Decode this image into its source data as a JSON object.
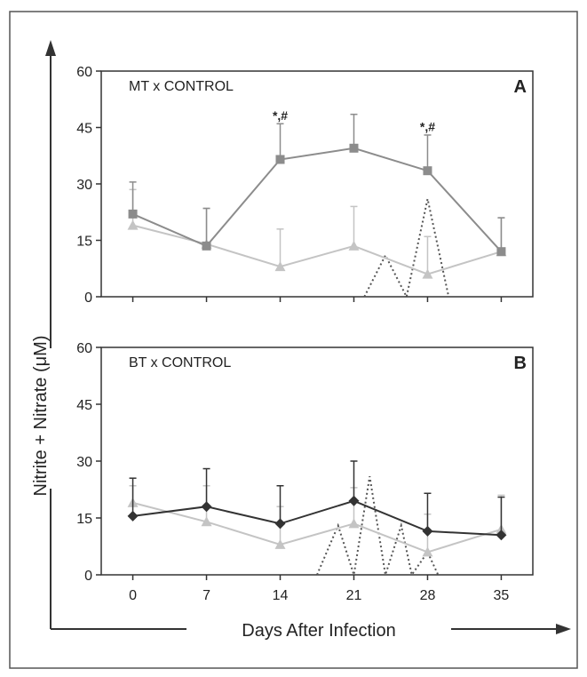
{
  "colors": {
    "frame": "#555555",
    "axis": "#333333",
    "mt": "#8c8c8c",
    "control": "#c4c4c4",
    "bt": "#333333",
    "dotted": "#555555"
  },
  "axes": {
    "xlabel": "Days After Infection",
    "ylabel": "Nitrite + Nitrate (μM)"
  },
  "chart_data": [
    {
      "type": "line",
      "title": "MT x CONTROL",
      "panel_letter": "A",
      "x": [
        0,
        7,
        14,
        21,
        28,
        35
      ],
      "xlim": [
        -3,
        38
      ],
      "ylim": [
        0,
        60
      ],
      "yticks": [
        "0",
        "15",
        "30",
        "45",
        "60"
      ],
      "series": [
        {
          "key": "MT",
          "marker": "square",
          "color": "#8c8c8c",
          "values": [
            22,
            13.5,
            36.5,
            39.5,
            33.5,
            12
          ],
          "error_upper": [
            30.5,
            23.5,
            46,
            48.5,
            43,
            21
          ]
        },
        {
          "key": "CONTROL",
          "marker": "triangle",
          "color": "#c4c4c4",
          "values": [
            19,
            14,
            8,
            13.5,
            6,
            12
          ],
          "error_upper": [
            28.5,
            23.5,
            18,
            24,
            16,
            21
          ]
        }
      ],
      "dotted_overlay": [
        [
          22,
          0
        ],
        [
          24,
          11
        ],
        [
          26,
          0
        ],
        [
          28,
          26
        ],
        [
          30,
          0
        ]
      ],
      "annotations": [
        {
          "text": "*,#",
          "x": 14,
          "y": 48
        },
        {
          "text": "*,#",
          "x": 28,
          "y": 45
        }
      ]
    },
    {
      "type": "line",
      "title": "BT x CONTROL",
      "panel_letter": "B",
      "x": [
        0,
        7,
        14,
        21,
        28,
        35
      ],
      "xticks": [
        "0",
        "7",
        "14",
        "21",
        "28",
        "35"
      ],
      "xlim": [
        -3,
        38
      ],
      "ylim": [
        0,
        60
      ],
      "yticks": [
        "0",
        "15",
        "30",
        "45",
        "60"
      ],
      "series": [
        {
          "key": "BT",
          "marker": "diamond",
          "color": "#333333",
          "values": [
            15.5,
            18,
            13.5,
            19.5,
            11.5,
            10.5
          ],
          "error_upper": [
            25.5,
            28,
            23.5,
            30,
            21.5,
            20.5
          ]
        },
        {
          "key": "CONTROL",
          "marker": "triangle",
          "color": "#c4c4c4",
          "values": [
            19,
            14,
            8,
            13.5,
            6,
            12
          ],
          "error_upper": [
            23.5,
            23.5,
            18,
            23,
            16,
            21
          ]
        }
      ],
      "dotted_overlay": [
        [
          17.5,
          0
        ],
        [
          19.5,
          13
        ],
        [
          21,
          0
        ],
        [
          22.5,
          26
        ],
        [
          24,
          0
        ],
        [
          25.5,
          13
        ],
        [
          26.5,
          0
        ],
        [
          28,
          6
        ],
        [
          29,
          0
        ]
      ],
      "annotations": []
    }
  ]
}
